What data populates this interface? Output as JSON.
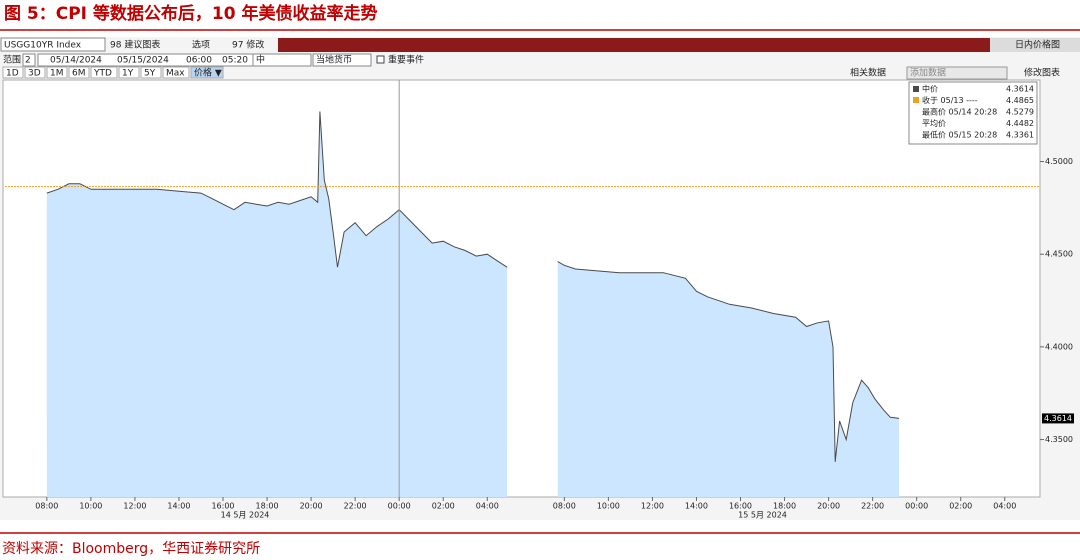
{
  "header": {
    "title": "图 5：CPI 等数据公布后，10 年美债收益率走势"
  },
  "toolbar": {
    "ticker": "USGG10YR Index",
    "suggest": "98 建议图表",
    "options": "选项",
    "edit": "97 修改",
    "chart_name": "日内价格图",
    "range_label": "范围",
    "range_value": "2",
    "start_date": "05/14/2024",
    "end_date": "05/15/2024",
    "start_time": "06:00",
    "end_time": "05:20",
    "field": "中",
    "currency": "当地货币",
    "events": "重要事件",
    "periods": [
      "1D",
      "3D",
      "1M",
      "6M",
      "YTD",
      "1Y",
      "5Y",
      "Max",
      "价格 ▼"
    ],
    "related": "相关数据",
    "add": "添加数据",
    "edit_chart": "修改图表"
  },
  "chart_data": {
    "type": "line",
    "x": [
      0,
      0.5,
      1,
      1.5,
      2,
      3,
      4,
      5,
      6,
      7,
      7.5,
      8,
      8.5,
      9,
      9.5,
      10,
      10.5,
      11,
      11.5,
      12,
      12.3,
      12.4,
      12.6,
      12.8,
      13,
      13.2,
      13.5,
      14,
      14.5,
      15,
      15.5,
      16,
      16.5,
      17,
      17.5,
      18,
      18.5,
      19,
      19.5,
      20,
      20.5,
      20.9,
      null,
      23.2,
      23.5,
      24,
      25,
      26,
      27,
      28,
      29,
      29.5,
      30,
      31,
      32,
      33,
      34,
      34.5,
      35,
      35.5,
      35.7,
      35.8,
      36,
      36.3,
      36.6,
      37,
      37.3,
      37.6,
      38,
      38.3,
      38.7
    ],
    "series": [
      {
        "name": "中价",
        "color": "#4a4a4a",
        "values": [
          4.483,
          4.485,
          4.488,
          4.488,
          4.485,
          4.485,
          4.485,
          4.485,
          4.484,
          4.483,
          4.48,
          4.477,
          4.474,
          4.478,
          4.477,
          4.476,
          4.478,
          4.477,
          4.479,
          4.481,
          4.478,
          4.527,
          4.49,
          4.48,
          4.462,
          4.443,
          4.462,
          4.467,
          4.46,
          4.465,
          4.469,
          4.474,
          4.468,
          4.462,
          4.456,
          4.457,
          4.454,
          4.452,
          4.449,
          4.45,
          4.446,
          4.443,
          null,
          4.446,
          4.444,
          4.442,
          4.441,
          4.44,
          4.44,
          4.44,
          4.437,
          4.43,
          4.427,
          4.423,
          4.421,
          4.418,
          4.416,
          4.411,
          4.413,
          4.414,
          4.4,
          4.338,
          4.36,
          4.35,
          4.37,
          4.382,
          4.378,
          4.372,
          4.366,
          4.362,
          4.3614
        ]
      }
    ],
    "xlim": [
      -1.9,
      45.1
    ],
    "xticks": [
      {
        "value": 0,
        "label": "08:00"
      },
      {
        "value": 2,
        "label": "10:00"
      },
      {
        "value": 4,
        "label": "12:00"
      },
      {
        "value": 6,
        "label": "14:00"
      },
      {
        "value": 8,
        "label": "16:00"
      },
      {
        "value": 10,
        "label": "18:00"
      },
      {
        "value": 12,
        "label": "20:00"
      },
      {
        "value": 14,
        "label": "22:00"
      },
      {
        "value": 16,
        "label": "00:00"
      },
      {
        "value": 18,
        "label": "02:00"
      },
      {
        "value": 20,
        "label": "04:00"
      },
      {
        "value": 23.5,
        "label": "08:00"
      },
      {
        "value": 25.5,
        "label": "10:00"
      },
      {
        "value": 27.5,
        "label": "12:00"
      },
      {
        "value": 29.5,
        "label": "14:00"
      },
      {
        "value": 31.5,
        "label": "16:00"
      },
      {
        "value": 33.5,
        "label": "18:00"
      },
      {
        "value": 35.5,
        "label": "20:00"
      },
      {
        "value": 37.5,
        "label": "22:00"
      },
      {
        "value": 39.5,
        "label": "00:00"
      },
      {
        "value": 41.5,
        "label": "02:00"
      },
      {
        "value": 43.5,
        "label": "04:00"
      }
    ],
    "ylim": [
      4.319,
      4.544
    ],
    "yticks": [
      {
        "value": 4.35,
        "label": "4.3500"
      },
      {
        "value": 4.4,
        "label": "4.4000"
      },
      {
        "value": 4.45,
        "label": "4.4500"
      },
      {
        "value": 4.5,
        "label": "4.5000"
      }
    ],
    "area_color": "#cde6ff",
    "close_color": "#f0a020",
    "day_labels": [
      {
        "x": 9,
        "label": "14 5月 2024"
      },
      {
        "x": 32.5,
        "label": "15 5月 2024"
      }
    ],
    "stats": [
      {
        "label": "中价",
        "value": 4.3614
      },
      {
        "label": "收于 05/13 ----",
        "value": 4.4865
      },
      {
        "label": "最高价 05/14 20:28",
        "value": 4.5279
      },
      {
        "label": "平均价",
        "value": 4.4482
      },
      {
        "label": "最低价 05/15 20:28",
        "value": 4.3361
      }
    ]
  },
  "footer": {
    "source": "资料来源：Bloomberg，华西证券研究所"
  }
}
